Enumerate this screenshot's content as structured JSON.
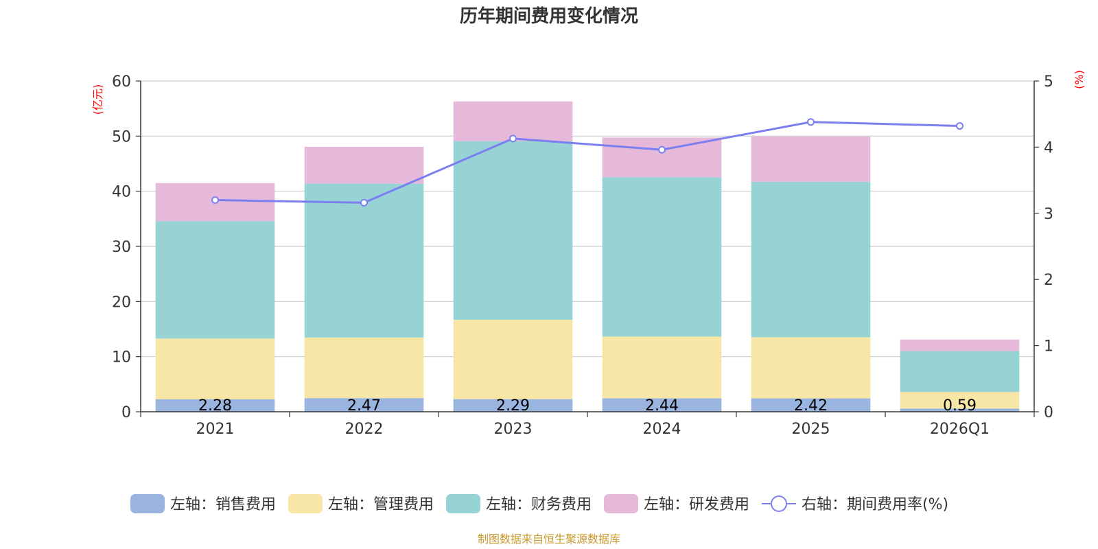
{
  "chart_data": {
    "type": "bar",
    "title": "历年期间费用变化情况",
    "categories": [
      "2021",
      "2022",
      "2023",
      "2024",
      "2025",
      "2026Q1"
    ],
    "y_left": {
      "unit": "(亿元)",
      "min": 0,
      "max": 60,
      "ticks": [
        0,
        10,
        20,
        30,
        40,
        50,
        60
      ]
    },
    "y_right": {
      "unit": "(%)",
      "min": 0,
      "max": 5,
      "ticks": [
        0,
        1,
        2,
        3,
        4,
        5
      ]
    },
    "series": [
      {
        "name": "左轴：销售费用",
        "axis": "left",
        "kind": "bar",
        "color": "#9ab4e0",
        "values": [
          2.28,
          2.47,
          2.29,
          2.44,
          2.42,
          0.59
        ],
        "labels": [
          "2.28",
          "2.47",
          "2.29",
          "2.44",
          "2.42",
          "0.59"
        ]
      },
      {
        "name": "左轴：管理费用",
        "axis": "left",
        "kind": "bar",
        "color": "#f7e6a6",
        "values": [
          11.0,
          11.0,
          14.4,
          11.2,
          11.1,
          3.0
        ]
      },
      {
        "name": "左轴：财务费用",
        "axis": "left",
        "kind": "bar",
        "color": "#97d3d4",
        "values": [
          21.3,
          27.9,
          32.4,
          28.9,
          28.2,
          7.4
        ]
      },
      {
        "name": "左轴：研发费用",
        "axis": "left",
        "kind": "bar",
        "color": "#e6b8d9",
        "values": [
          6.9,
          6.7,
          7.2,
          7.2,
          8.2,
          2.1
        ]
      },
      {
        "name": "右轴：期间费用率(%)",
        "axis": "right",
        "kind": "line",
        "color": "#7b7ff0",
        "values": [
          3.2,
          3.16,
          4.13,
          3.96,
          4.38,
          4.32
        ]
      }
    ],
    "grid": true,
    "legend_position": "bottom"
  },
  "footer": {
    "source": "制图数据来自恒生聚源数据库"
  }
}
